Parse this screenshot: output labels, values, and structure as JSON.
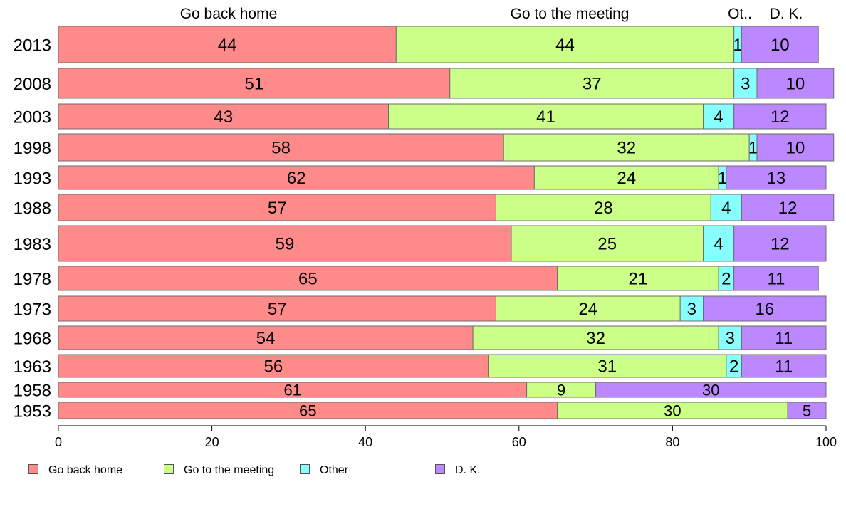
{
  "chart_data": {
    "type": "bar",
    "orientation": "horizontal",
    "stacked": true,
    "categories": [
      "2013",
      "2008",
      "2003",
      "1998",
      "1993",
      "1988",
      "1983",
      "1978",
      "1973",
      "1968",
      "1963",
      "1958",
      "1953"
    ],
    "series": [
      {
        "name": "Go back home",
        "color": "#ff8a8a",
        "values": [
          44,
          51,
          43,
          58,
          62,
          57,
          59,
          65,
          57,
          54,
          56,
          61,
          65
        ]
      },
      {
        "name": "Go to the meeting",
        "color": "#ccff88",
        "values": [
          44,
          37,
          41,
          32,
          24,
          28,
          25,
          21,
          24,
          32,
          31,
          9,
          30
        ]
      },
      {
        "name": "Other",
        "color": "#88ffff",
        "values": [
          1,
          3,
          4,
          1,
          1,
          4,
          4,
          2,
          3,
          3,
          2,
          0,
          0
        ]
      },
      {
        "name": "D. K.",
        "color": "#bb88ff",
        "values": [
          10,
          10,
          12,
          10,
          13,
          12,
          12,
          11,
          16,
          11,
          11,
          30,
          5
        ]
      }
    ],
    "top_labels": [
      "Go back home",
      "Go to the meeting",
      "Ot..",
      "D. K."
    ],
    "xlim": [
      0,
      100
    ],
    "xticks": [
      0,
      20,
      40,
      60,
      80,
      100
    ],
    "grid": false,
    "legend_position": "bottom"
  }
}
